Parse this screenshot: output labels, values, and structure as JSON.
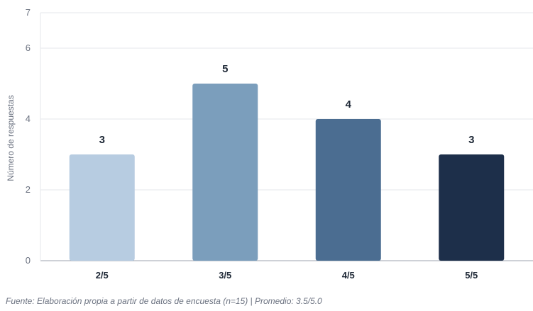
{
  "chart_data": {
    "type": "bar",
    "categories": [
      "2/5",
      "3/5",
      "4/5",
      "5/5"
    ],
    "values": [
      3,
      5,
      4,
      3
    ],
    "data_labels": [
      "3",
      "5",
      "4",
      "3"
    ],
    "colors": [
      "#b7cce1",
      "#7b9ebc",
      "#4b6d91",
      "#1d2f4a"
    ],
    "ylabel": "Número de respuestas",
    "xlabel": "",
    "ylim": [
      0,
      7
    ],
    "yticks": [
      0,
      2,
      4,
      6,
      7
    ],
    "grid": true
  },
  "source_note": "Fuente: Elaboración propia a partir de datos de encuesta (n=15) | Promedio: 3.5/5.0"
}
